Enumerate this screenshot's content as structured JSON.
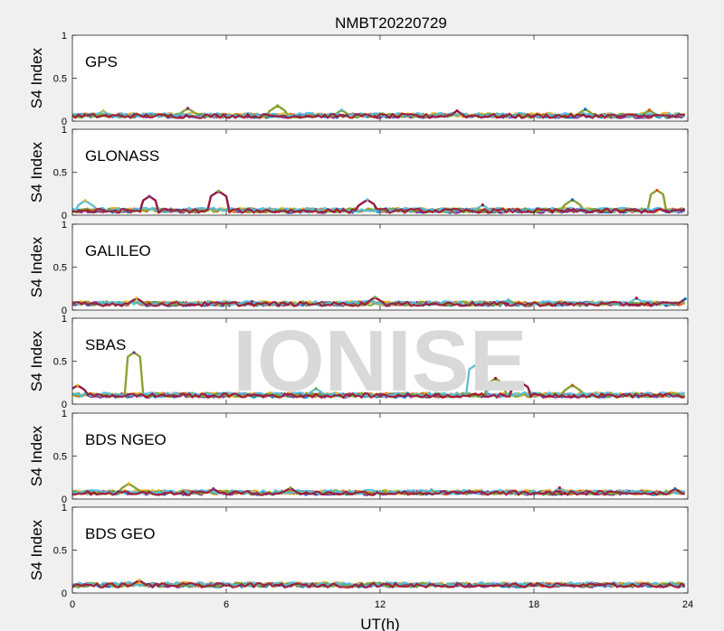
{
  "chart_data": {
    "type": "scatter",
    "title": "NMBT20220729",
    "xlabel": "UT(h)",
    "ylabel": "S4 Index",
    "xlim": [
      0,
      24
    ],
    "ylim": [
      0,
      1
    ],
    "xticks": [
      0,
      6,
      12,
      18,
      24
    ],
    "yticks": [
      0,
      0.5,
      1
    ],
    "watermark": "IONISE",
    "panels": [
      {
        "label": "GPS",
        "baseline": 0.06,
        "spikes": [
          [
            1.2,
            0.12
          ],
          [
            4.5,
            0.15
          ],
          [
            8.0,
            0.18
          ],
          [
            10.5,
            0.13
          ],
          [
            15.0,
            0.12
          ],
          [
            20.0,
            0.14
          ],
          [
            22.5,
            0.13
          ]
        ]
      },
      {
        "label": "GLONASS",
        "baseline": 0.05,
        "spikes": [
          [
            0.5,
            0.17
          ],
          [
            3.0,
            0.22
          ],
          [
            5.7,
            0.28
          ],
          [
            11.5,
            0.18
          ],
          [
            16.0,
            0.12
          ],
          [
            19.5,
            0.18
          ],
          [
            22.8,
            0.29
          ]
        ]
      },
      {
        "label": "GALILEO",
        "baseline": 0.07,
        "spikes": [
          [
            2.5,
            0.14
          ],
          [
            7.0,
            0.1
          ],
          [
            11.8,
            0.15
          ],
          [
            17.0,
            0.12
          ],
          [
            22.0,
            0.14
          ],
          [
            23.9,
            0.13
          ]
        ]
      },
      {
        "label": "SBAS",
        "baseline": 0.1,
        "spikes": [
          [
            0.2,
            0.22
          ],
          [
            2.4,
            0.6
          ],
          [
            9.5,
            0.18
          ],
          [
            15.8,
            0.47
          ],
          [
            16.5,
            0.3
          ],
          [
            17.5,
            0.25
          ],
          [
            19.5,
            0.22
          ]
        ]
      },
      {
        "label": "BDS NGEO",
        "baseline": 0.07,
        "spikes": [
          [
            2.2,
            0.18
          ],
          [
            5.5,
            0.12
          ],
          [
            8.5,
            0.13
          ],
          [
            14.0,
            0.11
          ],
          [
            19.0,
            0.13
          ],
          [
            23.5,
            0.12
          ]
        ]
      },
      {
        "label": "BDS GEO",
        "baseline": 0.09,
        "spikes": [
          [
            2.6,
            0.15
          ]
        ]
      }
    ],
    "colors": [
      "#0072BD",
      "#D95319",
      "#EDB120",
      "#7E2F8E",
      "#77AC30",
      "#4DBEEE",
      "#A2142F"
    ]
  }
}
